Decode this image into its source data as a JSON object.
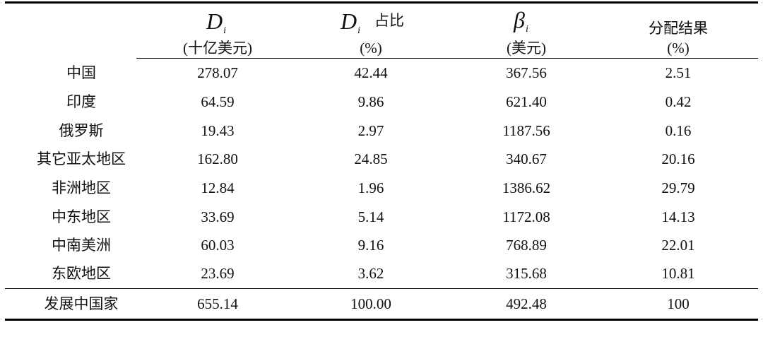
{
  "header": {
    "col1": {
      "symbol": "D",
      "sub": "i",
      "unit": "(十亿美元)"
    },
    "col2": {
      "symbol": "D",
      "sub": "i",
      "suffix": "占比",
      "unit": "(%)"
    },
    "col3": {
      "symbol": "β",
      "sub": "i",
      "unit": "(美元)"
    },
    "col4": {
      "label": "分配结果",
      "unit": "(%)"
    }
  },
  "rows": [
    {
      "region": "中国",
      "d": "278.07",
      "share": "42.44",
      "beta": "367.56",
      "alloc": "2.51"
    },
    {
      "region": "印度",
      "d": "64.59",
      "share": "9.86",
      "beta": "621.40",
      "alloc": "0.42"
    },
    {
      "region": "俄罗斯",
      "d": "19.43",
      "share": "2.97",
      "beta": "1187.56",
      "alloc": "0.16"
    },
    {
      "region": "其它亚太地区",
      "d": "162.80",
      "share": "24.85",
      "beta": "340.67",
      "alloc": "20.16"
    },
    {
      "region": "非洲地区",
      "d": "12.84",
      "share": "1.96",
      "beta": "1386.62",
      "alloc": "29.79"
    },
    {
      "region": "中东地区",
      "d": "33.69",
      "share": "5.14",
      "beta": "1172.08",
      "alloc": "14.13"
    },
    {
      "region": "中南美洲",
      "d": "60.03",
      "share": "9.16",
      "beta": "768.89",
      "alloc": "22.01"
    },
    {
      "region": "东欧地区",
      "d": "23.69",
      "share": "3.62",
      "beta": "315.68",
      "alloc": "10.81"
    }
  ],
  "total": {
    "region": "发展中国家",
    "d": "655.14",
    "share": "100.00",
    "beta": "492.48",
    "alloc": "100"
  }
}
